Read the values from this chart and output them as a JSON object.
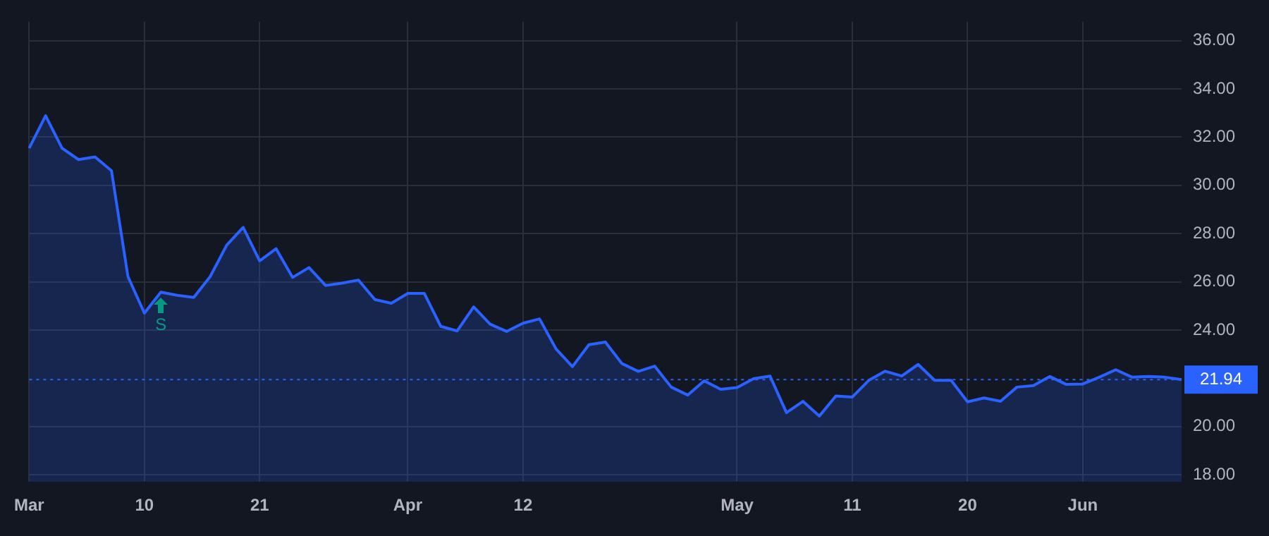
{
  "chart_data": {
    "type": "area",
    "categories": [
      "Mar",
      null,
      null,
      null,
      null,
      null,
      null,
      "10",
      null,
      null,
      null,
      null,
      null,
      null,
      "21",
      null,
      null,
      null,
      null,
      null,
      null,
      null,
      null,
      "Apr",
      null,
      null,
      null,
      null,
      null,
      null,
      "12",
      null,
      null,
      null,
      null,
      null,
      null,
      null,
      null,
      null,
      null,
      null,
      null,
      "May",
      null,
      null,
      null,
      null,
      null,
      null,
      "11",
      null,
      null,
      null,
      null,
      null,
      null,
      "20",
      null,
      null,
      null,
      null,
      null,
      null,
      "Jun",
      null,
      null,
      null,
      null,
      null,
      null
    ],
    "series": [
      {
        "color": "#2962ff",
        "values": [
          31.54,
          32.89,
          31.54,
          31.07,
          31.18,
          30.61,
          26.22,
          24.7,
          25.57,
          25.44,
          25.35,
          26.22,
          27.52,
          28.26,
          26.87,
          27.37,
          26.18,
          26.59,
          25.85,
          25.94,
          26.07,
          25.26,
          25.11,
          25.52,
          25.52,
          24.15,
          23.96,
          24.96,
          24.24,
          23.94,
          24.28,
          24.46,
          23.22,
          22.48,
          23.39,
          23.5,
          22.61,
          22.28,
          22.5,
          21.63,
          21.3,
          21.89,
          21.54,
          21.61,
          21.98,
          22.09,
          20.57,
          21.04,
          20.43,
          21.26,
          21.22,
          21.91,
          22.29,
          22.09,
          22.57,
          21.91,
          21.91,
          21.02,
          21.18,
          21.04,
          21.63,
          21.69,
          22.07,
          21.74,
          21.76,
          22.04,
          22.35,
          22.04,
          22.07,
          22.04,
          21.94
        ]
      }
    ],
    "ylim": [
      17.7,
      36.8
    ],
    "yticks": [
      {
        "value": 18,
        "label": "18.00"
      },
      {
        "value": 20,
        "label": "20.00"
      },
      {
        "value": 24,
        "label": "24.00"
      },
      {
        "value": 26,
        "label": "26.00"
      },
      {
        "value": 28,
        "label": "28.00"
      },
      {
        "value": 30,
        "label": "30.00"
      },
      {
        "value": 32,
        "label": "32.00"
      },
      {
        "value": 34,
        "label": "34.00"
      },
      {
        "value": 36,
        "label": "36.00"
      }
    ],
    "grid": true,
    "legend": false,
    "marker": "none",
    "line_style": "solid",
    "ref_lines": [
      {
        "axis": "y",
        "value": 21.94,
        "label": "21.94",
        "color": "#2962ff",
        "line_style": "dotted"
      }
    ],
    "annotations": [
      {
        "text": "S",
        "y": 25.57
      }
    ]
  }
}
